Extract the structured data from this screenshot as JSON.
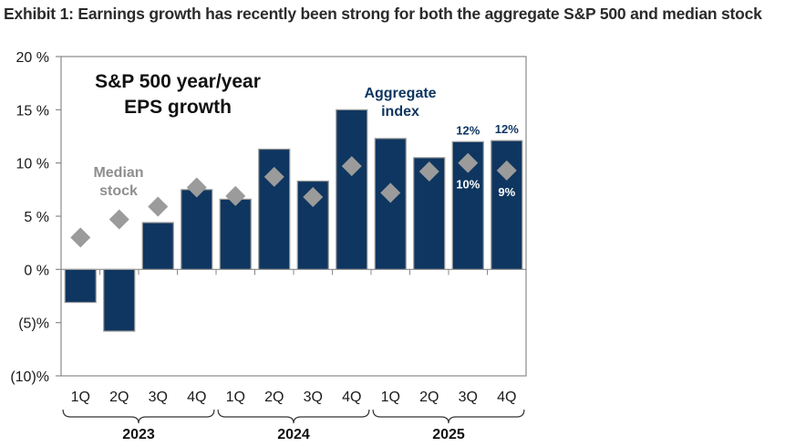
{
  "exhibit": {
    "title": "Exhibit 1: Earnings growth has recently been strong for both the aggregate S&P 500 and median stock"
  },
  "chart_data": {
    "type": "bar",
    "title": "S&P 500 year/year EPS growth",
    "title_lines": [
      "S&P 500 year/year",
      "EPS growth"
    ],
    "xlabel": "",
    "ylabel": "",
    "ylim": [
      -10,
      20
    ],
    "yticks": [
      20,
      15,
      10,
      5,
      0,
      -5,
      -10
    ],
    "ytick_labels": [
      "20 %",
      "15 %",
      "10 %",
      "5 %",
      "0 %",
      "(5)%",
      "(10)%"
    ],
    "grid": false,
    "categories": [
      "1Q",
      "2Q",
      "3Q",
      "4Q",
      "1Q",
      "2Q",
      "3Q",
      "4Q",
      "1Q",
      "2Q",
      "3Q",
      "4Q"
    ],
    "year_groups": [
      {
        "label": "2023",
        "start": 0,
        "end": 3
      },
      {
        "label": "2024",
        "start": 4,
        "end": 7
      },
      {
        "label": "2025",
        "start": 8,
        "end": 11
      }
    ],
    "series": [
      {
        "name": "Aggregate index",
        "kind": "bar",
        "color": "#0f3660",
        "values": [
          -3.1,
          -5.8,
          4.4,
          7.5,
          6.6,
          11.3,
          8.3,
          15.0,
          12.3,
          10.5,
          12.0,
          12.1
        ],
        "data_labels": {
          "10": "12%",
          "11": "12%"
        }
      },
      {
        "name": "Median stock",
        "kind": "marker-diamond",
        "color": "#9b9b9b",
        "values": [
          3.0,
          4.7,
          5.9,
          7.7,
          6.9,
          8.7,
          6.8,
          9.7,
          7.2,
          9.2,
          10.0,
          9.3
        ],
        "data_labels": {
          "10": "10%",
          "11": "9%"
        }
      }
    ],
    "annotations": {
      "median_lines": [
        "Median",
        "stock"
      ],
      "aggregate_lines": [
        "Aggregate",
        "index"
      ]
    }
  }
}
